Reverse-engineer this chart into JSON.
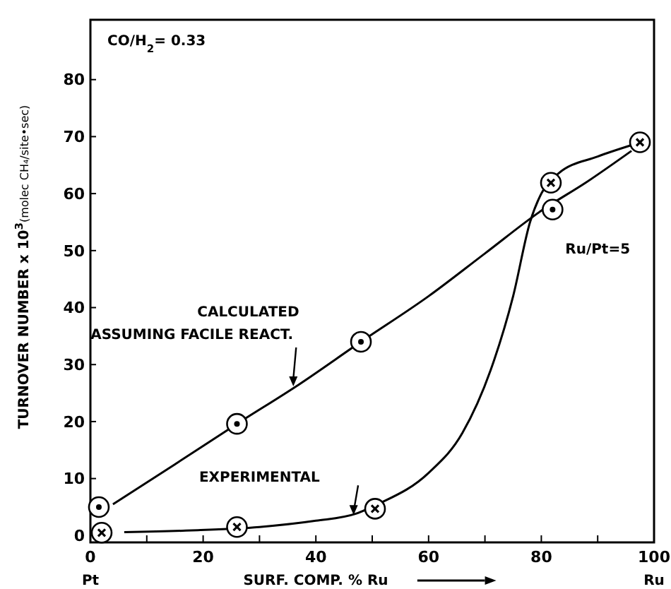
{
  "chart_data": {
    "type": "line",
    "xlabel": "SURF. COMP. % Ru",
    "ylabel": "TURNOVER NUMBER x 10$^{3}$(molec CH₄/site•sec)",
    "xlim": [
      0,
      100
    ],
    "ylim": [
      -1.2,
      90.5
    ],
    "xticks": [
      0,
      {
        "value": 10,
        "label": null
      },
      20,
      {
        "value": 30,
        "label": null
      },
      40,
      {
        "value": 50,
        "label": null
      },
      60,
      {
        "value": 70,
        "label": null
      },
      80,
      {
        "value": 90,
        "label": null
      },
      100
    ],
    "yticks": [
      0,
      10,
      20,
      30,
      40,
      50,
      60,
      70,
      80
    ],
    "line_style": "solid",
    "series": [
      {
        "color": "#000000",
        "x": [
          4,
          15,
          26,
          37,
          48,
          60,
          70,
          80,
          88,
          96
        ],
        "values": [
          5.5,
          12.5,
          19.6,
          26.5,
          34,
          42,
          49.5,
          57,
          62,
          67.5
        ]
      },
      {
        "color": "#000000",
        "x": [
          6,
          18,
          30,
          40,
          47,
          51,
          60,
          66,
          71,
          75,
          78,
          80,
          83,
          90,
          96
        ],
        "values": [
          0.6,
          0.9,
          1.5,
          2.6,
          3.8,
          5.5,
          11,
          18,
          29,
          42,
          55,
          60,
          63.5,
          66.5,
          68.5
        ]
      },
      {
        "type": "scatter",
        "color": "#000000",
        "x": [
          1.5,
          26,
          48,
          82
        ],
        "values": [
          5,
          19.6,
          34,
          57.2
        ]
      },
      {
        "type": "scatter",
        "color": "#000000",
        "x": [
          2,
          26,
          50.5,
          81.7,
          97.5
        ],
        "values": [
          0.5,
          1.5,
          4.7,
          61.9,
          69
        ]
      }
    ],
    "annotations": [
      "CO/H$_{2}$= 0.33",
      "CALCULATED",
      "ASSUMING FACILE REACT.",
      "EXPERIMENTAL",
      "Ru/Pt=5",
      "Pt",
      "Ru"
    ]
  }
}
